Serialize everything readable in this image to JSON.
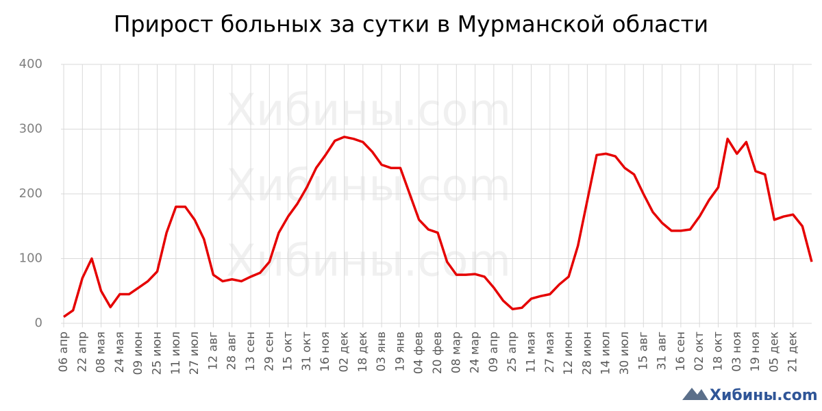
{
  "chart_data": {
    "type": "line",
    "title": "Прирост больных за сутки в Мурманской области",
    "watermark": "Хибины.com",
    "color": "#e50000",
    "grid": true,
    "ylim": [
      0,
      400
    ],
    "yticks": [
      0,
      100,
      200,
      300,
      400
    ],
    "categories": [
      "06 апр",
      null,
      "22 апр",
      null,
      "08 мая",
      null,
      "24 мая",
      null,
      "09 июн",
      null,
      "25 июн",
      null,
      "11 июл",
      null,
      "27 июл",
      null,
      "12 авг",
      null,
      "28 авг",
      null,
      "13 сен",
      null,
      "29 сен",
      null,
      "15 окт",
      null,
      "31 окт",
      null,
      "16 ноя",
      null,
      "02 дек",
      null,
      "18 дек",
      null,
      "03 янв",
      null,
      "19 янв",
      null,
      "04 фев",
      null,
      "20 фев",
      null,
      "08 мар",
      null,
      "24 мар",
      null,
      "09 апр",
      null,
      "25 апр",
      null,
      "11 мая",
      null,
      "27 мая",
      null,
      "12 июн",
      null,
      "28 июн",
      null,
      "14 июл",
      null,
      "30 июл",
      null,
      "15 авг",
      null,
      "31 авг",
      null,
      "16 сен",
      null,
      "02 окт",
      null,
      "18 окт",
      null,
      "03 ноя",
      null,
      "19 ноя",
      null,
      "05 дек",
      null,
      "21 дек",
      null,
      null
    ],
    "values": [
      10,
      20,
      70,
      100,
      50,
      25,
      45,
      45,
      55,
      65,
      80,
      140,
      180,
      180,
      160,
      130,
      75,
      65,
      68,
      65,
      72,
      78,
      95,
      140,
      165,
      185,
      210,
      240,
      260,
      282,
      288,
      285,
      280,
      265,
      245,
      240,
      240,
      200,
      160,
      145,
      140,
      95,
      75,
      75,
      76,
      72,
      55,
      35,
      22,
      24,
      38,
      42,
      45,
      60,
      72,
      120,
      190,
      260,
      262,
      258,
      240,
      230,
      200,
      172,
      155,
      143,
      143,
      145,
      165,
      190,
      210,
      285,
      262,
      280,
      235,
      230,
      160,
      165,
      168,
      150,
      95
    ]
  }
}
